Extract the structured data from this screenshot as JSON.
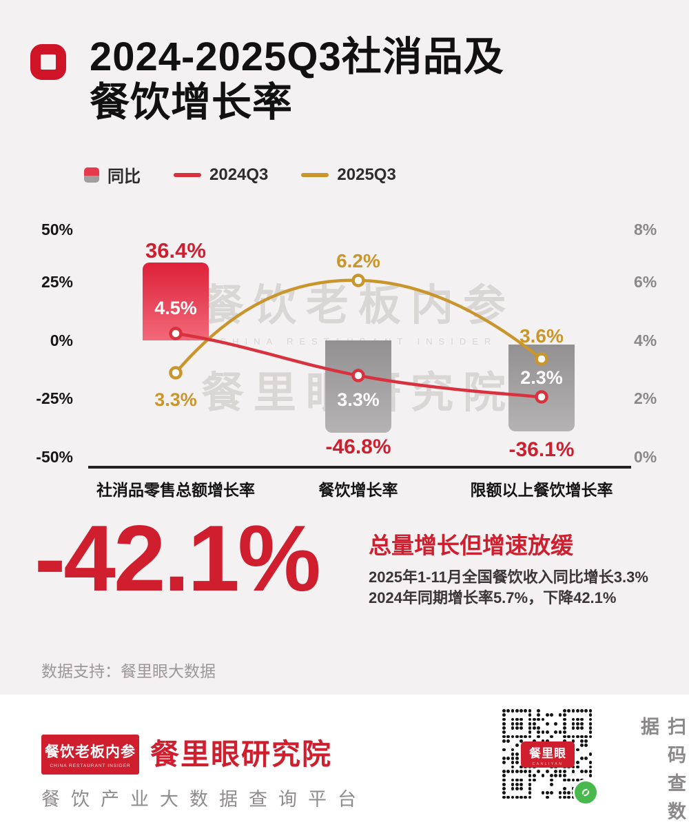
{
  "page": {
    "background": "#f4f1f2",
    "accent_red": "#cf1e2e",
    "accent_gold": "#c9962e"
  },
  "header": {
    "title_line1": "2024-2025Q3社消品及",
    "title_line2": "餐饮增长率"
  },
  "legend": {
    "items": [
      {
        "label": "同比",
        "type": "bar",
        "color": "#e6394c"
      },
      {
        "label": "2024Q3",
        "type": "line",
        "color": "#d8323f"
      },
      {
        "label": "2025Q3",
        "type": "line",
        "color": "#c9962e"
      }
    ]
  },
  "chart_data": {
    "type": "combo-bar-line",
    "categories": [
      "社消品零售总额增长率",
      "餐饮增长率",
      "限额以上餐饮增长率"
    ],
    "bars": {
      "name": "同比",
      "axis": "left",
      "values_pct": [
        36.4,
        -46.8,
        -36.1
      ],
      "colors": [
        "#dd2138",
        "#a09e9f",
        "#a09e9f"
      ]
    },
    "lines": [
      {
        "name": "2024Q3",
        "color": "#d8323f",
        "axis": "right",
        "values_pct": [
          4.5,
          3.3,
          2.3
        ]
      },
      {
        "name": "2025Q3",
        "color": "#c9962e",
        "axis": "right",
        "values_pct": [
          3.3,
          6.2,
          3.6
        ]
      }
    ],
    "left_axis": {
      "range": [
        -50,
        50
      ],
      "ticks": [
        "50%",
        "25%",
        "0%",
        "-25%",
        "-50%"
      ]
    },
    "right_axis": {
      "range": [
        0,
        8
      ],
      "ticks": [
        "8%",
        "6%",
        "4%",
        "2%",
        "0%"
      ]
    },
    "grid": false,
    "legend_position": "top-left",
    "title": "2024-2025Q3社消品及餐饮增长率"
  },
  "chart_display": {
    "left_ticks": [
      "50%",
      "25%",
      "0%",
      "-25%",
      "-50%"
    ],
    "right_ticks": [
      "8%",
      "6%",
      "4%",
      "2%",
      "0%"
    ],
    "bar_labels": [
      "36.4%",
      "-46.8%",
      "-36.1%"
    ],
    "red_point_labels": [
      "4.5%",
      "3.3%",
      "2.3%"
    ],
    "gold_point_labels": [
      "3.3%",
      "6.2%",
      "3.6%"
    ]
  },
  "watermark": {
    "line1": "餐饮老板内参",
    "line2": "CHINA RESTAURANT INSIDER",
    "star": "★",
    "line3": "餐里眼研究院"
  },
  "summary": {
    "big_number": "-42.1%",
    "headline": "总量增长但增速放缓",
    "detail_line1": "2025年1-11月全国餐饮收入同比增长3.3%",
    "detail_line2": "2024年同期增长率5.7%，下降42.1%"
  },
  "source": {
    "text": "数据支持：餐里眼大数据"
  },
  "footer": {
    "logo_title": "餐饮老板内参",
    "logo_sub": "CHINA RESTAURANT INSIDER",
    "brand": "餐里眼研究院",
    "tagline": "餐饮产业大数据查询平台",
    "qr_label": "餐里眼",
    "qr_sub": "CANLIYAN",
    "scan_text": "扫码查数据"
  }
}
